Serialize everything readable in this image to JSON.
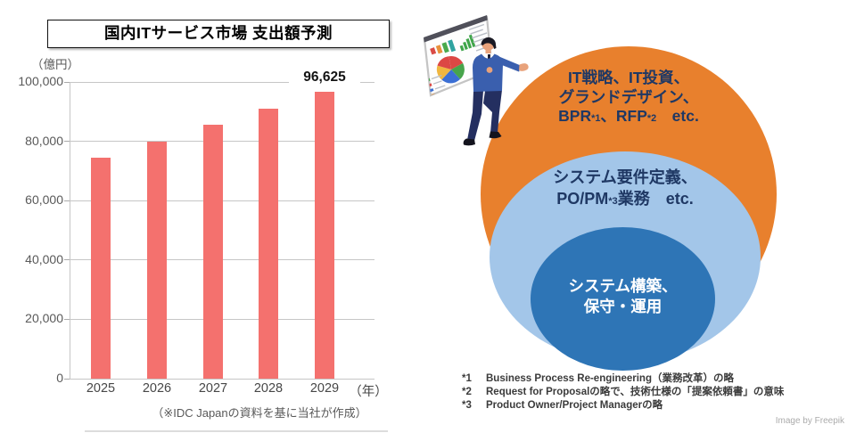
{
  "chart": {
    "title": "国内ITサービス市場 支出額予測",
    "y_unit": "（億円）",
    "x_unit": "（年）",
    "source": "（※IDC Japanの資料を基に当社が作成）"
  },
  "chart_data": {
    "type": "bar",
    "title": "国内ITサービス市場 支出額予測",
    "categories": [
      "2025",
      "2026",
      "2027",
      "2028",
      "2029"
    ],
    "values": [
      74500,
      80000,
      85500,
      91000,
      96625
    ],
    "data_labels": [
      null,
      null,
      null,
      null,
      "96,625"
    ],
    "xlabel": "（年）",
    "ylabel": "（億円）",
    "ylim": [
      0,
      100000
    ],
    "ytick_step": 20000,
    "grid": true,
    "legend": false,
    "bar_color": "#F4716E",
    "gridline_color": "#C6C6C6",
    "source": "（※IDC Japanの資料を基に当社が作成）"
  },
  "diagram": {
    "rings": {
      "outer": {
        "color": "#E8802D",
        "text_color": "#1F3864",
        "line1": "IT戦略、IT投資、",
        "line2": "グランドデザイン、",
        "line3_parts": {
          "p1": "BPR",
          "s1": "*1",
          "p2": "、RFP",
          "s2": "*2",
          "p3": "　etc."
        }
      },
      "middle": {
        "color": "#A3C6E9",
        "text_color": "#1F3864",
        "line1": "システム要件定義、",
        "line2_parts": {
          "p1": "PO/PM",
          "s1": "*3",
          "p2": "業務　etc."
        }
      },
      "inner": {
        "color": "#2E75B6",
        "text_color": "#FFFFFF",
        "line1": "システム構築、",
        "line2": "保守・運用"
      }
    },
    "illustration": {
      "name": "presenter-with-chart-board",
      "suit_color": "#3A5FAE",
      "pants_color": "#242F60",
      "skin_color": "#E8A27B",
      "hair_color": "#1A1A24"
    }
  },
  "footnotes": [
    {
      "marker": "*1",
      "text": "Business Process Re-engineering（業務改革）の略"
    },
    {
      "marker": "*2",
      "text": "Request for Proposalの略で、技術仕様の「提案依頼書」の意味"
    },
    {
      "marker": "*3",
      "text": "Product Owner/Project Managerの略"
    }
  ],
  "credit": "Image by Freepik"
}
